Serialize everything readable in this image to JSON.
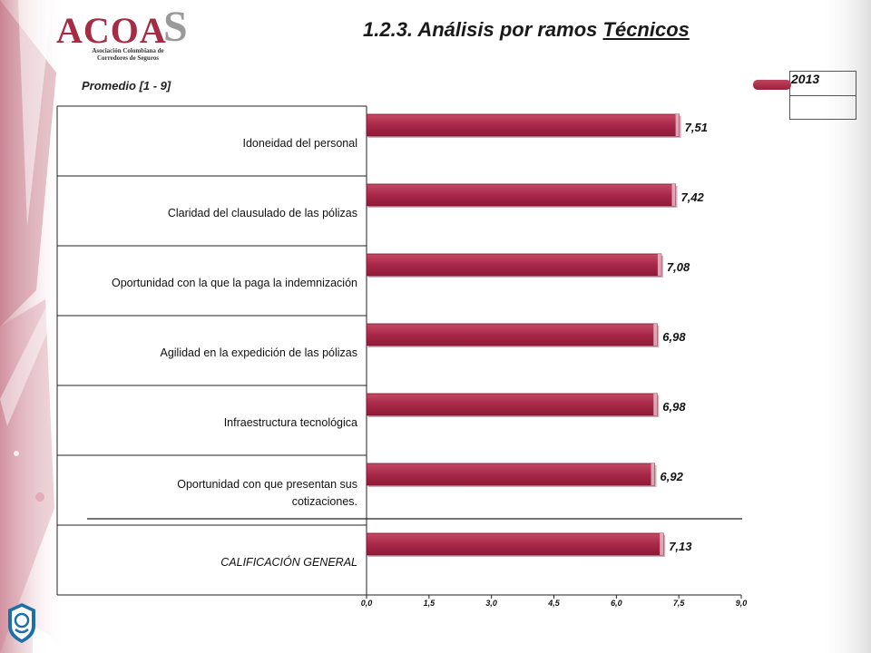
{
  "logo": {
    "main": "ACOA",
    "big_letter": "S",
    "subtitle_line1": "Asociación Colombiana de",
    "subtitle_line2": "Corredores de Seguros"
  },
  "title": {
    "prefix": "1.2.3. Análisis por ramos ",
    "underlined": "Técnicos"
  },
  "subtitle": "Promedio  [1 - 9]",
  "colors": {
    "bar": "#a8284a",
    "bar_light": "#c44a64",
    "accent": "#a42c44"
  },
  "chart_data": {
    "type": "bar",
    "orientation": "horizontal",
    "categories": [
      "Idoneidad del personal",
      "Claridad del clausulado de las pólizas",
      "Oportunidad con la que la paga la indemnización",
      "Agilidad en la expedición de las pólizas",
      "Infraestructura tecnológica",
      "Oportunidad con que presentan sus cotizaciones.",
      "CALIFICACIÓN GENERAL"
    ],
    "category_lines": [
      [
        "Idoneidad del personal"
      ],
      [
        "Claridad del clausulado de las pólizas"
      ],
      [
        "Oportunidad con la que la paga la indemnización"
      ],
      [
        "Agilidad en la expedición de las pólizas"
      ],
      [
        "Infraestructura tecnológica"
      ],
      [
        "Oportunidad con que presentan sus",
        "cotizaciones."
      ],
      [
        "CALIFICACIÓN GENERAL"
      ]
    ],
    "series": [
      {
        "name": "2013",
        "values": [
          7.51,
          7.42,
          7.08,
          6.98,
          6.98,
          6.92,
          7.13
        ],
        "labels": [
          "7,51",
          "7,42",
          "7,08",
          "6,98",
          "6,98",
          "6,92",
          "7,13"
        ]
      }
    ],
    "xlim": [
      0,
      9
    ],
    "xticks": [
      "0,0",
      "1,5",
      "3,0",
      "4,5",
      "6,0",
      "7,5",
      "9,0"
    ],
    "legend": {
      "position": "top-right",
      "entries": [
        "2013"
      ]
    },
    "grid": false
  }
}
